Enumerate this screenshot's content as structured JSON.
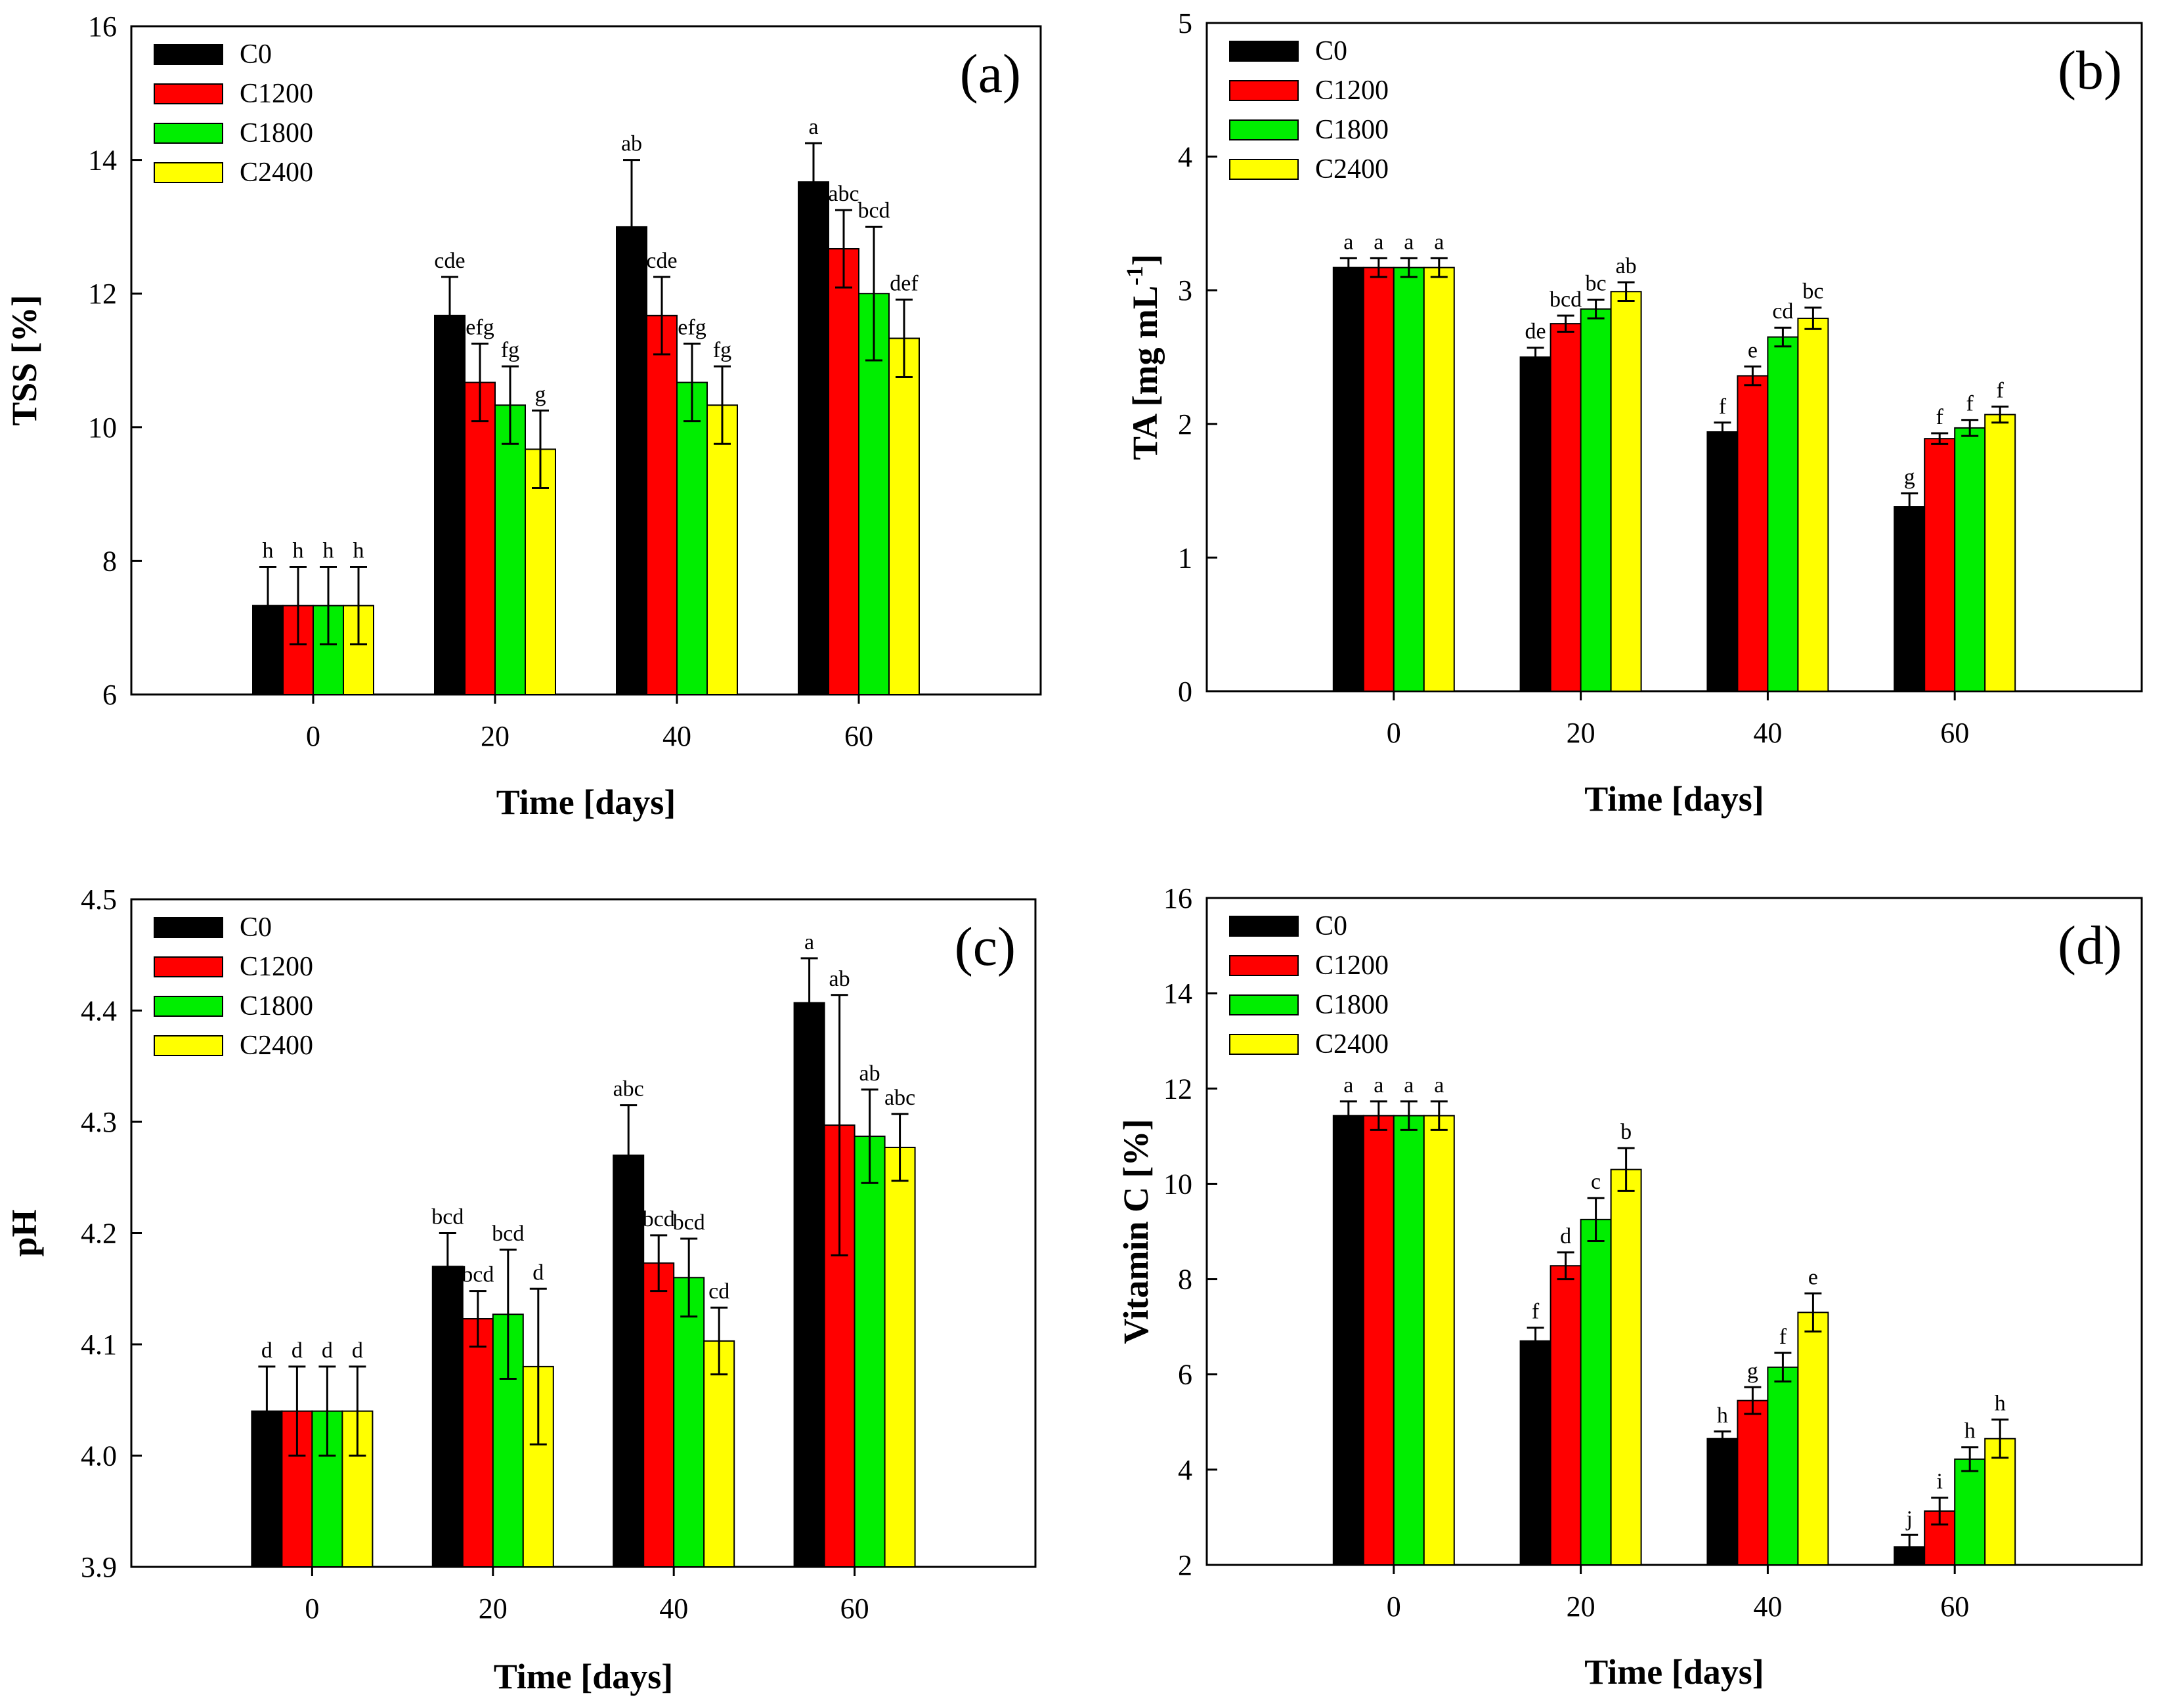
{
  "chart_data": [
    {
      "type": "bar",
      "panel_label": "(a)",
      "categories": [
        "0",
        "20",
        "40",
        "60"
      ],
      "xlabel": "Time [days]",
      "ylabel": "TSS [%]",
      "ylim": [
        6,
        16
      ],
      "yticks": [
        "6",
        "8",
        "10",
        "12",
        "14",
        "16"
      ],
      "legend_position": "top-left",
      "series": [
        {
          "name": "C0",
          "color": "#000000",
          "values": [
            7.33,
            11.67,
            13.0,
            13.67
          ],
          "errors": [
            0.58,
            0.58,
            1.0,
            0.58
          ],
          "letters": [
            "h",
            "cde",
            "ab",
            "a"
          ]
        },
        {
          "name": "C1200",
          "color": "#ff0000",
          "values": [
            7.33,
            10.67,
            11.67,
            12.67
          ],
          "errors": [
            0.58,
            0.58,
            0.58,
            0.58
          ],
          "letters": [
            "h",
            "efg",
            "cde",
            "abc"
          ]
        },
        {
          "name": "C1800",
          "color": "#00ee00",
          "values": [
            7.33,
            10.33,
            10.67,
            12.0
          ],
          "errors": [
            0.58,
            0.58,
            0.58,
            1.0
          ],
          "letters": [
            "h",
            "fg",
            "efg",
            "bcd"
          ]
        },
        {
          "name": "C2400",
          "color": "#ffff00",
          "values": [
            7.33,
            9.67,
            10.33,
            11.33
          ],
          "errors": [
            0.58,
            0.58,
            0.58,
            0.58
          ],
          "letters": [
            "h",
            "g",
            "fg",
            "def"
          ]
        }
      ]
    },
    {
      "type": "bar",
      "panel_label": "(b)",
      "categories": [
        "0",
        "20",
        "40",
        "60"
      ],
      "xlabel": "Time [days]",
      "ylabel": "TA [mg mL",
      "ylabel_superscript": "-1",
      "ylabel_suffix": "]",
      "ylim": [
        0,
        5
      ],
      "yticks": [
        "0",
        "1",
        "2",
        "3",
        "4",
        "5"
      ],
      "legend_position": "top-left",
      "series": [
        {
          "name": "C0",
          "color": "#000000",
          "values": [
            3.17,
            2.5,
            1.94,
            1.38
          ],
          "errors": [
            0.07,
            0.07,
            0.07,
            0.1
          ],
          "letters": [
            "a",
            "de",
            "f",
            "g"
          ]
        },
        {
          "name": "C1200",
          "color": "#ff0000",
          "values": [
            3.17,
            2.75,
            2.36,
            1.89
          ],
          "errors": [
            0.07,
            0.06,
            0.07,
            0.04
          ],
          "letters": [
            "a",
            "bcd",
            "e",
            "f"
          ]
        },
        {
          "name": "C1800",
          "color": "#00ee00",
          "values": [
            3.17,
            2.86,
            2.65,
            1.97
          ],
          "errors": [
            0.07,
            0.07,
            0.07,
            0.06
          ],
          "letters": [
            "a",
            "bc",
            "cd",
            "f"
          ]
        },
        {
          "name": "C2400",
          "color": "#ffff00",
          "values": [
            3.17,
            2.99,
            2.79,
            2.07
          ],
          "errors": [
            0.07,
            0.07,
            0.08,
            0.06
          ],
          "letters": [
            "a",
            "ab",
            "bc",
            "f"
          ]
        }
      ]
    },
    {
      "type": "bar",
      "panel_label": "(c)",
      "categories": [
        "0",
        "20",
        "40",
        "60"
      ],
      "xlabel": "Time [days]",
      "ylabel": "pH",
      "ylim": [
        3.9,
        4.5
      ],
      "yticks": [
        "3.9",
        "4.0",
        "4.1",
        "4.2",
        "4.3",
        "4.4",
        "4.5"
      ],
      "legend_position": "top-left",
      "series": [
        {
          "name": "C0",
          "color": "#000000",
          "values": [
            4.04,
            4.17,
            4.27,
            4.407
          ],
          "errors": [
            0.04,
            0.03,
            0.045,
            0.04
          ],
          "letters": [
            "d",
            "bcd",
            "abc",
            "a"
          ]
        },
        {
          "name": "C1200",
          "color": "#ff0000",
          "values": [
            4.04,
            4.123,
            4.173,
            4.297
          ],
          "errors": [
            0.04,
            0.025,
            0.025,
            0.117
          ],
          "letters": [
            "d",
            "bcd",
            "bcd",
            "ab"
          ]
        },
        {
          "name": "C1800",
          "color": "#00ee00",
          "values": [
            4.04,
            4.127,
            4.16,
            4.287
          ],
          "errors": [
            0.04,
            0.058,
            0.035,
            0.042
          ],
          "letters": [
            "d",
            "bcd",
            "bcd",
            "ab"
          ]
        },
        {
          "name": "C2400",
          "color": "#ffff00",
          "values": [
            4.04,
            4.08,
            4.103,
            4.277
          ],
          "errors": [
            0.04,
            0.07,
            0.03,
            0.03
          ],
          "letters": [
            "d",
            "d",
            "cd",
            "abc"
          ]
        }
      ]
    },
    {
      "type": "bar",
      "panel_label": "(d)",
      "categories": [
        "0",
        "20",
        "40",
        "60"
      ],
      "xlabel": "Time [days]",
      "ylabel": "Vitamin C [%]",
      "ylim": [
        2,
        16
      ],
      "yticks": [
        "2",
        "4",
        "6",
        "8",
        "10",
        "12",
        "14",
        "16"
      ],
      "legend_position": "top-left",
      "series": [
        {
          "name": "C0",
          "color": "#000000",
          "values": [
            11.43,
            6.7,
            4.65,
            2.38
          ],
          "errors": [
            0.3,
            0.28,
            0.15,
            0.25
          ],
          "letters": [
            "a",
            "f",
            "h",
            "j"
          ]
        },
        {
          "name": "C1200",
          "color": "#ff0000",
          "values": [
            11.43,
            8.28,
            5.45,
            3.13
          ],
          "errors": [
            0.3,
            0.28,
            0.28,
            0.28
          ],
          "letters": [
            "a",
            "d",
            "g",
            "i"
          ]
        },
        {
          "name": "C1800",
          "color": "#00ee00",
          "values": [
            11.43,
            9.25,
            6.15,
            4.22
          ],
          "errors": [
            0.3,
            0.45,
            0.3,
            0.25
          ],
          "letters": [
            "a",
            "c",
            "f",
            "h"
          ]
        },
        {
          "name": "C2400",
          "color": "#ffff00",
          "values": [
            11.43,
            10.3,
            7.3,
            4.65
          ],
          "errors": [
            0.3,
            0.45,
            0.4,
            0.4
          ],
          "letters": [
            "a",
            "b",
            "e",
            "h"
          ]
        }
      ]
    }
  ]
}
